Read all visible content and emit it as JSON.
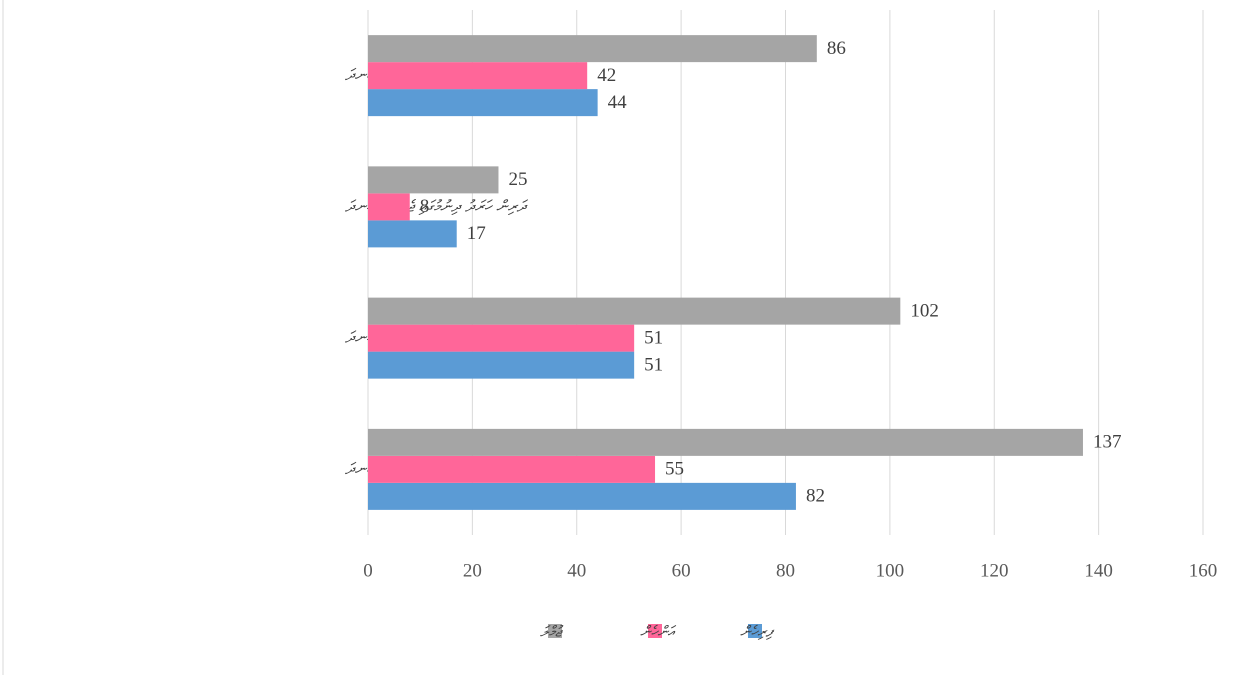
{
  "chart_data": {
    "type": "bar",
    "orientation": "horizontal",
    "categories": [
      "ކުރިންނާއި ބައްދަލުވުންތަކުގައި ޖެހޭ މުއްސަނދަ",
      "ދަރިން ހަރަދު ދިނުމުގައި ޖެހޭ މުއްސަނދަ",
      "ހަސަނާގެ މުއްސަނދަ",
      "ކުރިން ބެލުމުގައި ޖެހޭ މުއްސަނދަ"
    ],
    "series": [
      {
        "name": "ފިރިހެން",
        "color": "#5b9bd5",
        "values": [
          44,
          17,
          51,
          82
        ]
      },
      {
        "name": "އަންހެން",
        "color": "#ff6699",
        "values": [
          42,
          8,
          51,
          55
        ]
      },
      {
        "name": "ޖުމްލަ",
        "color": "#a5a5a5",
        "values": [
          86,
          25,
          102,
          137
        ]
      }
    ],
    "xlim": [
      0,
      160
    ],
    "xticks": [
      0,
      20,
      40,
      60,
      80,
      100,
      120,
      140,
      160
    ],
    "grid": true,
    "legend": "bottom"
  }
}
